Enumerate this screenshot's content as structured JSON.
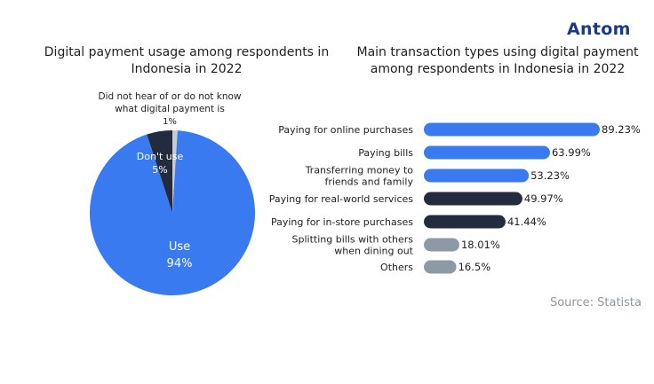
{
  "brand": {
    "logo_text": "Antom",
    "logo_color": "#1b3a8c"
  },
  "source_text": "Source: Statista",
  "colors": {
    "blue": "#3a7af0",
    "navy": "#232b3e",
    "gray": "#8e99a6",
    "light_gray": "#c7ccd2",
    "text": "#222222"
  },
  "chart_data": [
    {
      "type": "pie",
      "title": "Digital payment usage among respondents in Indonesia in 2022",
      "title_lines": [
        "Digital payment usage among respondents in",
        "Indonesia in 2022"
      ],
      "slices": [
        {
          "label": "Use",
          "value": 94,
          "value_label": "94%",
          "color": "#3a7af0"
        },
        {
          "label": "Don't use",
          "value": 5,
          "value_label": "5%",
          "color": "#232b3e"
        },
        {
          "label": "Did not hear of or do not know what digital payment is",
          "label_lines": [
            "Did not hear of or do not know",
            "what digital payment is"
          ],
          "value": 1,
          "value_label": "1%",
          "color": "#c7ccd2"
        }
      ]
    },
    {
      "type": "bar",
      "orientation": "horizontal",
      "title": "Main transaction types using digital payment among respondents in Indonesia in 2022",
      "title_lines": [
        "Main transaction types using digital payment",
        "among respondents in Indonesia in 2022"
      ],
      "unit": "%",
      "xlim": [
        0,
        89.23
      ],
      "bars": [
        {
          "category": "Paying for online purchases",
          "lines": [
            "Paying for online purchases"
          ],
          "value": 89.23,
          "value_label": "89.23%",
          "color": "#3a7af0"
        },
        {
          "category": "Paying bills",
          "lines": [
            "Paying bills"
          ],
          "value": 63.99,
          "value_label": "63.99%",
          "color": "#3a7af0"
        },
        {
          "category": "Transferring money to friends and family",
          "lines": [
            "Transferring money to",
            "friends and family"
          ],
          "value": 53.23,
          "value_label": "53.23%",
          "color": "#3a7af0"
        },
        {
          "category": "Paying for real-world services",
          "lines": [
            "Paying for real-world services"
          ],
          "value": 49.97,
          "value_label": "49.97%",
          "color": "#232b3e"
        },
        {
          "category": "Paying for in-store purchases",
          "lines": [
            "Paying for in-store purchases"
          ],
          "value": 41.44,
          "value_label": "41.44%",
          "color": "#232b3e"
        },
        {
          "category": "Splitting bills with others when dining out",
          "lines": [
            "Splitting bills with others",
            "when dining out"
          ],
          "value": 18.01,
          "value_label": "18.01%",
          "color": "#8e99a6"
        },
        {
          "category": "Others",
          "lines": [
            "Others"
          ],
          "value": 16.5,
          "value_label": "16.5%",
          "color": "#8e99a6"
        }
      ]
    }
  ]
}
